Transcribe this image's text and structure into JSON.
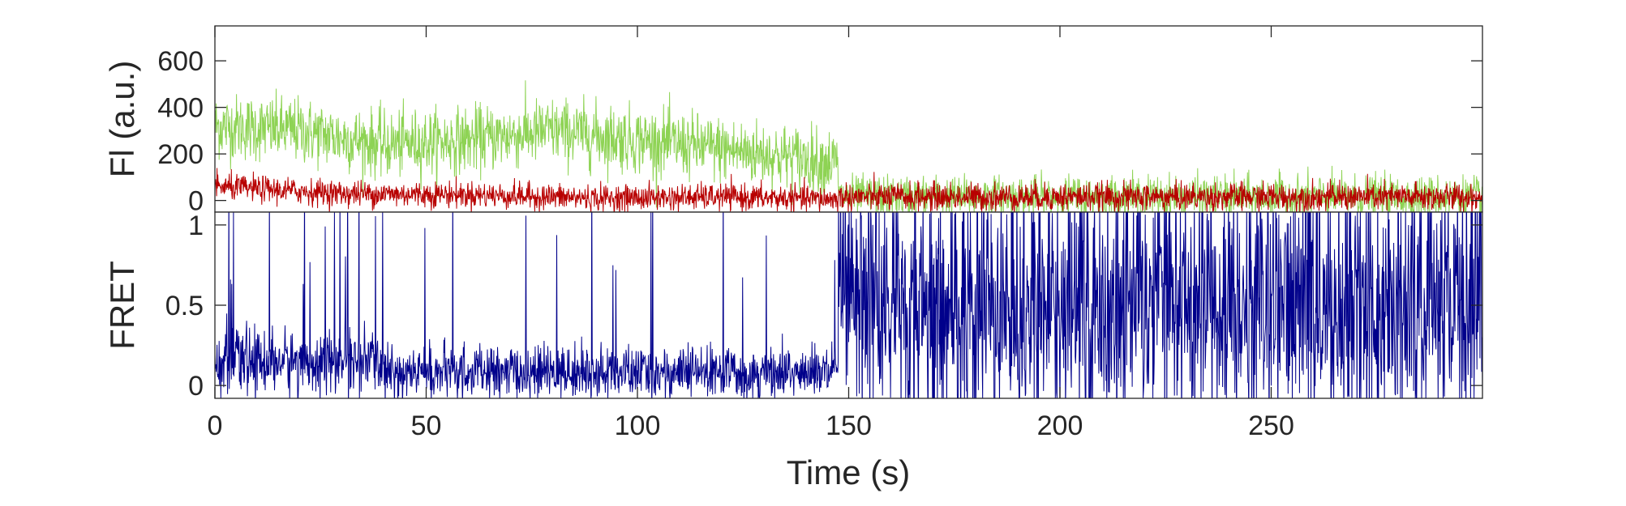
{
  "chart_data": [
    {
      "type": "line",
      "title": "",
      "xlabel": "",
      "ylabel": "Fl (a.u.)",
      "xlim": [
        0,
        300
      ],
      "ylim": [
        -50,
        750
      ],
      "yticks": [
        0,
        200,
        400,
        600
      ],
      "ytick_labels": [
        "0",
        "200",
        "400",
        "600"
      ],
      "grid": false,
      "series": [
        {
          "color": "#8ed354",
          "segments": [
            {
              "x_range": [
                0,
                147.5
              ],
              "mean_at": {
                "0": 320,
                "20": 300,
                "40": 240,
                "60": 260,
                "80": 300,
                "90": 280,
                "110": 240,
                "130": 200,
                "147.5": 160
              },
              "noise_sd": 70
            },
            {
              "x_range": [
                147.5,
                300
              ],
              "mean": 15,
              "noise_sd": 45
            }
          ]
        },
        {
          "color": "#b80000",
          "segments": [
            {
              "x_range": [
                0,
                147.5
              ],
              "mean_at": {
                "0": 60,
                "30": 30,
                "60": 25,
                "90": 10,
                "120": 15,
                "147.5": 5
              },
              "noise_sd": 28
            },
            {
              "x_range": [
                147.5,
                300
              ],
              "mean": 15,
              "noise_sd": 30
            }
          ]
        }
      ]
    },
    {
      "type": "line",
      "title": "",
      "xlabel": "Time (s)",
      "ylabel": "FRET",
      "xlim": [
        0,
        300
      ],
      "ylim": [
        -0.08,
        1.08
      ],
      "xticks": [
        0,
        50,
        100,
        150,
        200,
        250
      ],
      "xtick_labels": [
        "0",
        "50",
        "100",
        "150",
        "200",
        "250"
      ],
      "yticks": [
        0,
        0.5,
        1
      ],
      "ytick_labels": [
        "0",
        "0.5",
        "1"
      ],
      "grid": false,
      "series": [
        {
          "color": "#00008b",
          "segments": [
            {
              "x_range": [
                0,
                40
              ],
              "mean": 0.15,
              "noise_sd": 0.1,
              "spike_rate": 0.03
            },
            {
              "x_range": [
                40,
                147.5
              ],
              "mean": 0.08,
              "noise_sd": 0.08,
              "spike_rate": 0.02
            },
            {
              "x_range": [
                147.5,
                300
              ],
              "mean": 0.35,
              "noise_sd": 0.3,
              "spike_rate": 0.25
            }
          ]
        }
      ]
    }
  ]
}
